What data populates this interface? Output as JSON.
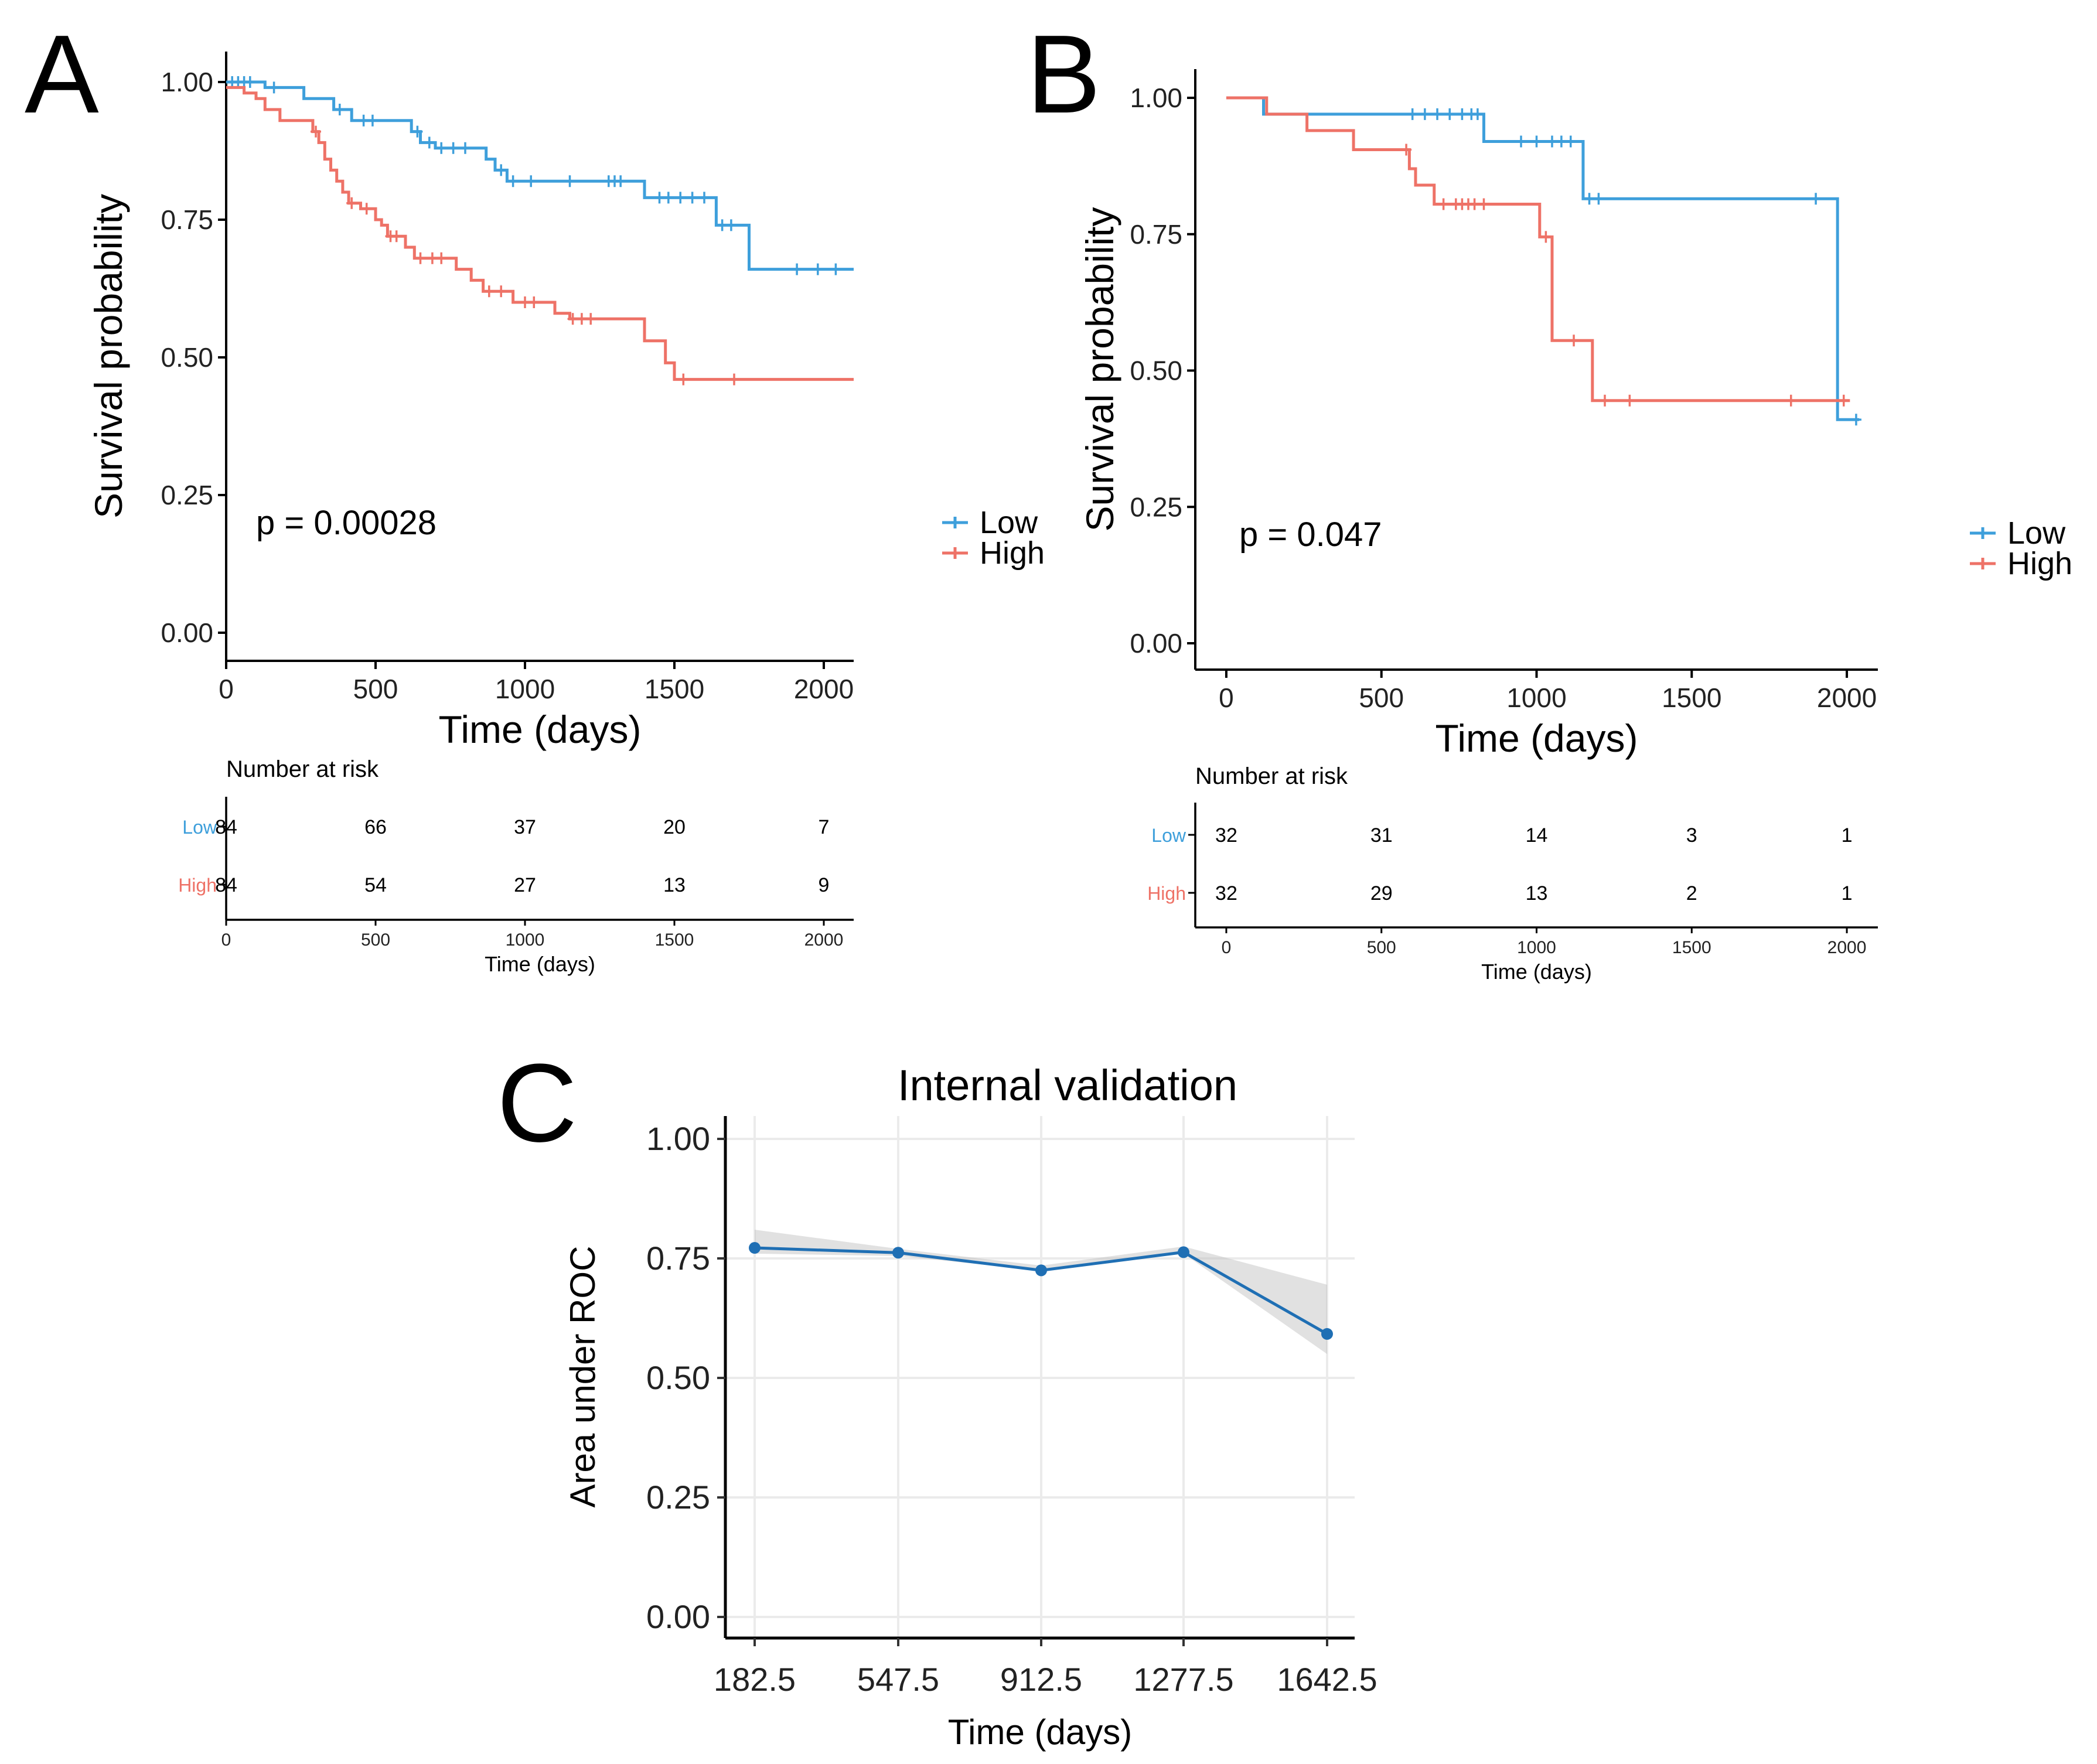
{
  "panels": [
    {
      "letter": "A",
      "chart_data": {
        "type": "line",
        "subtype": "kaplan-meier",
        "xlabel": "Time (days)",
        "ylabel": "Survival probability",
        "xlim": [
          0,
          2100
        ],
        "ylim": [
          0,
          1
        ],
        "xticks": [
          0,
          500,
          1000,
          1500,
          2000
        ],
        "xtick_labels": [
          "0",
          "500",
          "1000",
          "1500",
          "2000"
        ],
        "yticks": [
          0,
          0.25,
          0.5,
          0.75,
          1
        ],
        "ytick_labels": [
          "0.00",
          "0.25",
          "0.50",
          "0.75",
          "1.00"
        ],
        "pvalue_text": "p = 0.00028",
        "legend": {
          "position": "right",
          "entries": [
            "Low",
            "High"
          ]
        },
        "series": [
          {
            "name": "Low",
            "color": "#3e9fdb",
            "steps": [
              [
                0,
                1.0
              ],
              [
                130,
                0.99
              ],
              [
                260,
                0.97
              ],
              [
                360,
                0.95
              ],
              [
                420,
                0.93
              ],
              [
                620,
                0.91
              ],
              [
                650,
                0.89
              ],
              [
                700,
                0.88
              ],
              [
                870,
                0.86
              ],
              [
                900,
                0.84
              ],
              [
                940,
                0.82
              ],
              [
                1400,
                0.79
              ],
              [
                1640,
                0.74
              ],
              [
                1750,
                0.66
              ],
              [
                2100,
                0.66
              ]
            ],
            "censors": [
              [
                20,
                1.0
              ],
              [
                40,
                1.0
              ],
              [
                60,
                1.0
              ],
              [
                80,
                1.0
              ],
              [
                160,
                0.99
              ],
              [
                380,
                0.95
              ],
              [
                460,
                0.93
              ],
              [
                490,
                0.93
              ],
              [
                640,
                0.91
              ],
              [
                680,
                0.89
              ],
              [
                720,
                0.88
              ],
              [
                760,
                0.88
              ],
              [
                800,
                0.88
              ],
              [
                920,
                0.84
              ],
              [
                960,
                0.82
              ],
              [
                1020,
                0.82
              ],
              [
                1150,
                0.82
              ],
              [
                1280,
                0.82
              ],
              [
                1300,
                0.82
              ],
              [
                1320,
                0.82
              ],
              [
                1450,
                0.79
              ],
              [
                1480,
                0.79
              ],
              [
                1520,
                0.79
              ],
              [
                1560,
                0.79
              ],
              [
                1600,
                0.79
              ],
              [
                1660,
                0.74
              ],
              [
                1690,
                0.74
              ],
              [
                1910,
                0.66
              ],
              [
                1980,
                0.66
              ],
              [
                2040,
                0.66
              ]
            ]
          },
          {
            "name": "High",
            "color": "#ee7267",
            "steps": [
              [
                0,
                0.99
              ],
              [
                60,
                0.98
              ],
              [
                100,
                0.97
              ],
              [
                130,
                0.95
              ],
              [
                180,
                0.93
              ],
              [
                290,
                0.91
              ],
              [
                310,
                0.89
              ],
              [
                330,
                0.86
              ],
              [
                350,
                0.84
              ],
              [
                370,
                0.82
              ],
              [
                390,
                0.8
              ],
              [
                410,
                0.78
              ],
              [
                450,
                0.77
              ],
              [
                500,
                0.75
              ],
              [
                520,
                0.74
              ],
              [
                540,
                0.72
              ],
              [
                600,
                0.7
              ],
              [
                630,
                0.68
              ],
              [
                770,
                0.66
              ],
              [
                820,
                0.64
              ],
              [
                860,
                0.62
              ],
              [
                960,
                0.6
              ],
              [
                1100,
                0.58
              ],
              [
                1150,
                0.57
              ],
              [
                1400,
                0.53
              ],
              [
                1470,
                0.49
              ],
              [
                1500,
                0.46
              ],
              [
                2100,
                0.46
              ]
            ],
            "censors": [
              [
                300,
                0.91
              ],
              [
                420,
                0.78
              ],
              [
                470,
                0.77
              ],
              [
                550,
                0.72
              ],
              [
                570,
                0.72
              ],
              [
                650,
                0.68
              ],
              [
                690,
                0.68
              ],
              [
                720,
                0.68
              ],
              [
                880,
                0.62
              ],
              [
                920,
                0.62
              ],
              [
                1000,
                0.6
              ],
              [
                1030,
                0.6
              ],
              [
                1160,
                0.57
              ],
              [
                1190,
                0.57
              ],
              [
                1220,
                0.57
              ],
              [
                1530,
                0.46
              ],
              [
                1700,
                0.46
              ]
            ]
          }
        ]
      },
      "risk_table": {
        "title": "Number at risk",
        "xlabel": "Time (days)",
        "xticks": [
          0,
          500,
          1000,
          1500,
          2000
        ],
        "xtick_labels": [
          "0",
          "500",
          "1000",
          "1500",
          "2000"
        ],
        "rows": [
          {
            "name": "Low",
            "values": [
              "84",
              "66",
              "37",
              "20",
              "7"
            ]
          },
          {
            "name": "High",
            "values": [
              "84",
              "54",
              "27",
              "13",
              "9"
            ]
          }
        ]
      }
    },
    {
      "letter": "B",
      "chart_data": {
        "type": "line",
        "subtype": "kaplan-meier",
        "xlabel": "Time (days)",
        "ylabel": "Survival probability",
        "xlim": [
          -100,
          2100
        ],
        "ylim": [
          0,
          1
        ],
        "xticks": [
          0,
          500,
          1000,
          1500,
          2000
        ],
        "xtick_labels": [
          "0",
          "500",
          "1000",
          "1500",
          "2000"
        ],
        "yticks": [
          0,
          0.25,
          0.5,
          0.75,
          1
        ],
        "ytick_labels": [
          "0.00",
          "0.25",
          "0.50",
          "0.75",
          "1.00"
        ],
        "pvalue_text": "p = 0.047",
        "legend": {
          "position": "right",
          "entries": [
            "Low",
            "High"
          ]
        },
        "series": [
          {
            "name": "Low",
            "color": "#3e9fdb",
            "steps": [
              [
                0,
                1.0
              ],
              [
                120,
                0.97
              ],
              [
                830,
                0.92
              ],
              [
                1150,
                0.815
              ],
              [
                1970,
                0.41
              ],
              [
                2040,
                0.41
              ]
            ],
            "censors": [
              [
                600,
                0.97
              ],
              [
                640,
                0.97
              ],
              [
                680,
                0.97
              ],
              [
                720,
                0.97
              ],
              [
                760,
                0.97
              ],
              [
                790,
                0.97
              ],
              [
                810,
                0.97
              ],
              [
                950,
                0.92
              ],
              [
                1000,
                0.92
              ],
              [
                1050,
                0.92
              ],
              [
                1080,
                0.92
              ],
              [
                1110,
                0.92
              ],
              [
                1170,
                0.815
              ],
              [
                1200,
                0.815
              ],
              [
                1900,
                0.815
              ],
              [
                2030,
                0.41
              ]
            ]
          },
          {
            "name": "High",
            "color": "#ee7267",
            "steps": [
              [
                0,
                1.0
              ],
              [
                130,
                0.97
              ],
              [
                260,
                0.94
              ],
              [
                410,
                0.905
              ],
              [
                590,
                0.87
              ],
              [
                610,
                0.84
              ],
              [
                670,
                0.805
              ],
              [
                1010,
                0.745
              ],
              [
                1050,
                0.555
              ],
              [
                1180,
                0.445
              ],
              [
                2010,
                0.445
              ]
            ],
            "censors": [
              [
                580,
                0.905
              ],
              [
                700,
                0.805
              ],
              [
                740,
                0.805
              ],
              [
                760,
                0.805
              ],
              [
                780,
                0.805
              ],
              [
                800,
                0.805
              ],
              [
                830,
                0.805
              ],
              [
                1030,
                0.745
              ],
              [
                1120,
                0.555
              ],
              [
                1220,
                0.445
              ],
              [
                1300,
                0.445
              ],
              [
                1820,
                0.445
              ],
              [
                1990,
                0.445
              ]
            ]
          }
        ]
      },
      "risk_table": {
        "title": "Number at risk",
        "xlabel": "Time (days)",
        "xticks": [
          0,
          500,
          1000,
          1500,
          2000
        ],
        "xtick_labels": [
          "0",
          "500",
          "1000",
          "1500",
          "2000"
        ],
        "rows": [
          {
            "name": "Low",
            "values": [
              "32",
              "31",
              "14",
              "3",
              "1"
            ]
          },
          {
            "name": "High",
            "values": [
              "32",
              "29",
              "13",
              "2",
              "1"
            ]
          }
        ]
      }
    },
    {
      "letter": "C",
      "chart_data": {
        "type": "line",
        "title": "Internal validation",
        "xlabel": "Time (days)",
        "ylabel": "Area under ROC",
        "categories": [
          "182.5",
          "547.5",
          "912.5",
          "1277.5",
          "1642.5"
        ],
        "x": [
          182.5,
          547.5,
          912.5,
          1277.5,
          1642.5
        ],
        "ylim": [
          0,
          1
        ],
        "yticks": [
          0,
          0.25,
          0.5,
          0.75,
          1
        ],
        "ytick_labels": [
          "0.00",
          "0.25",
          "0.50",
          "0.75",
          "1.00"
        ],
        "series": [
          {
            "name": "AUC",
            "color": "#1f6fb4",
            "values": [
              0.772,
              0.762,
              0.725,
              0.763,
              0.592
            ]
          }
        ],
        "confidence_band": {
          "color": "#bdbdbd",
          "lower": [
            0.76,
            0.755,
            0.725,
            0.76,
            0.55
          ],
          "upper": [
            0.81,
            0.77,
            0.735,
            0.775,
            0.695
          ]
        }
      }
    }
  ]
}
